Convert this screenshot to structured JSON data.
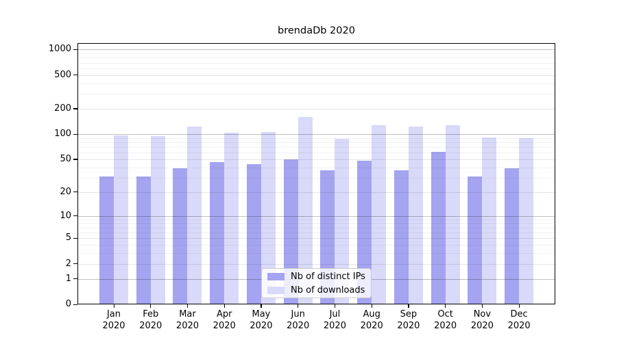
{
  "chart_data": {
    "type": "bar",
    "title": "brendaDb 2020",
    "year": "2020",
    "categories": [
      "Jan",
      "Feb",
      "Mar",
      "Apr",
      "May",
      "Jun",
      "Jul",
      "Aug",
      "Sep",
      "Oct",
      "Nov",
      "Dec"
    ],
    "series": [
      {
        "name": "Nb of distinct IPs",
        "color": "#a4a4f0",
        "values": [
          31,
          31,
          39,
          46,
          44,
          50,
          37,
          48,
          37,
          61,
          31,
          39
        ]
      },
      {
        "name": "Nb of downloads",
        "color": "#d9d9f9",
        "values": [
          97,
          95,
          124,
          103,
          106,
          160,
          87,
          128,
          123,
          127,
          91,
          90
        ]
      }
    ],
    "xlabel": "",
    "ylabel": "",
    "y_axis": {
      "scale": "log(value+1)",
      "tick_labels": [
        0,
        1,
        2,
        5,
        10,
        20,
        50,
        100,
        200,
        500,
        1000
      ],
      "range": [
        0,
        1200
      ],
      "major_grid_values": [
        1,
        10,
        100,
        1000
      ],
      "labeled_grid_values": [
        2,
        5,
        20,
        50,
        200,
        500
      ],
      "minor_grid_values": [
        3,
        4,
        6,
        7,
        8,
        9,
        30,
        40,
        60,
        70,
        80,
        90,
        300,
        400,
        600,
        700,
        800,
        900
      ]
    },
    "grid": "on",
    "legend_position": "lower center"
  },
  "colors": {
    "bar_distinct_ips": "#a4a4f0",
    "bar_downloads": "#d9d9f9",
    "grid_major": "rgba(0,0,0,0.25)",
    "grid_labeled": "rgba(0,0,0,0.10)",
    "grid_minor": "rgba(0,0,0,0.055)",
    "axis": "#000000",
    "background": "#ffffff",
    "legend_border": "#cccccc",
    "legend_background": "rgba(255,255,255,0.8)"
  }
}
